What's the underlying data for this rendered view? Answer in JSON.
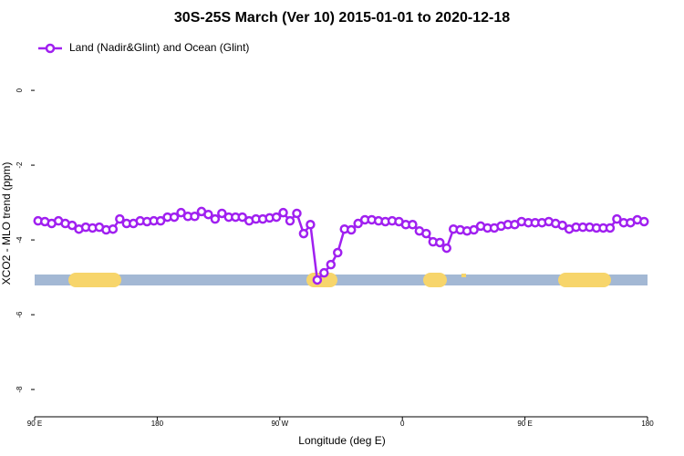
{
  "chart_data": {
    "type": "line",
    "title": "30S-25S March (Ver 10)   2015-01-01 to 2020-12-18",
    "xlabel": "Longitude (deg E)",
    "ylabel": "XCO2 - MLO trend (ppm)",
    "x": [
      92.5,
      97.5,
      102.5,
      107.5,
      112.5,
      117.5,
      122.5,
      127.5,
      132.5,
      137.5,
      142.5,
      147.5,
      152.5,
      157.5,
      162.5,
      167.5,
      172.5,
      177.5,
      182.5,
      187.5,
      192.5,
      197.5,
      202.5,
      207.5,
      212.5,
      217.5,
      222.5,
      227.5,
      232.5,
      237.5,
      242.5,
      247.5,
      252.5,
      257.5,
      262.5,
      267.5,
      272.5,
      277.5,
      282.5,
      287.5,
      292.5,
      297.5,
      302.5,
      307.5,
      312.5,
      317.5,
      322.5,
      327.5,
      332.5,
      337.5,
      342.5,
      347.5,
      352.5,
      357.5,
      362.5,
      367.5,
      372.5,
      377.5,
      382.5,
      387.5,
      392.5,
      397.5,
      402.5,
      407.5,
      412.5,
      417.5,
      422.5,
      427.5,
      432.5,
      437.5,
      442.5,
      447.5,
      452.5,
      457.5,
      462.5,
      467.5,
      472.5,
      477.5,
      482.5,
      487.5,
      492.5,
      497.5,
      502.5,
      507.5,
      512.5,
      517.5,
      522.5,
      527.5,
      532.5,
      537.5
    ],
    "series": [
      {
        "name": "Land (Nadir&Glint) and Ocean (Glint)",
        "color": "#a020f0",
        "values": [
          -3.49,
          -3.51,
          -3.56,
          -3.49,
          -3.56,
          -3.61,
          -3.71,
          -3.66,
          -3.68,
          -3.66,
          -3.73,
          -3.71,
          -3.44,
          -3.56,
          -3.56,
          -3.49,
          -3.51,
          -3.49,
          -3.49,
          -3.39,
          -3.39,
          -3.27,
          -3.37,
          -3.37,
          -3.24,
          -3.32,
          -3.44,
          -3.29,
          -3.39,
          -3.39,
          -3.39,
          -3.49,
          -3.44,
          -3.44,
          -3.41,
          -3.39,
          -3.27,
          -3.49,
          -3.29,
          -3.83,
          -3.59,
          -5.07,
          -4.88,
          -4.66,
          -4.34,
          -3.71,
          -3.73,
          -3.56,
          -3.46,
          -3.46,
          -3.49,
          -3.51,
          -3.49,
          -3.51,
          -3.59,
          -3.59,
          -3.76,
          -3.83,
          -4.05,
          -4.07,
          -4.22,
          -3.71,
          -3.73,
          -3.76,
          -3.73,
          -3.63,
          -3.68,
          -3.68,
          -3.63,
          -3.59,
          -3.59,
          -3.51,
          -3.54,
          -3.54,
          -3.54,
          -3.51,
          -3.56,
          -3.61,
          -3.71,
          -3.66,
          -3.66,
          -3.66,
          -3.68,
          -3.68,
          -3.68,
          -3.44,
          -3.54,
          -3.54,
          -3.46,
          -3.51
        ]
      }
    ],
    "xlim": [
      90,
      540
    ],
    "xticks": [
      {
        "value": 90,
        "label": "90 E"
      },
      180,
      {
        "value": 270,
        "label": "90 W"
      },
      {
        "value": 360,
        "label": "0"
      },
      {
        "value": 450,
        "label": "90 E"
      },
      {
        "value": 540,
        "label": "180"
      }
    ],
    "ylim": [
      -8.73,
      1.49
    ],
    "yticks": [
      0,
      -2,
      -4,
      -6,
      -8
    ],
    "legend": "top-left"
  }
}
